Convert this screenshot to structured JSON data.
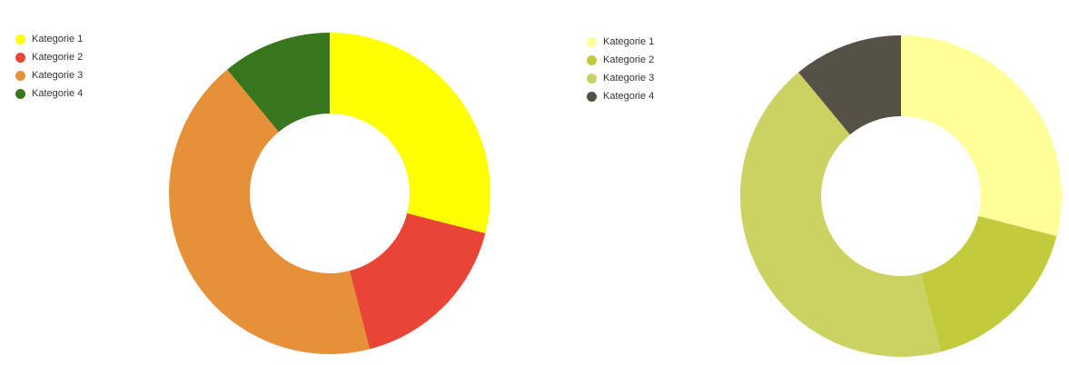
{
  "chart_data": [
    {
      "type": "pie",
      "donut": true,
      "categories": [
        "Kategorie 1",
        "Kategorie 2",
        "Kategorie 3",
        "Kategorie 4"
      ],
      "values": [
        29,
        17,
        43,
        11
      ],
      "colors": [
        "#ffff00",
        "#e84536",
        "#e69138",
        "#38761d"
      ],
      "legend": "top-left",
      "title": ""
    },
    {
      "type": "pie",
      "donut": true,
      "categories": [
        "Kategorie 1",
        "Kategorie 2",
        "Kategorie 3",
        "Kategorie 4"
      ],
      "values": [
        29,
        17,
        43,
        11
      ],
      "colors": [
        "#ffff99",
        "#c2cb3c",
        "#cbd262",
        "#565147"
      ],
      "legend": "top-left",
      "title": ""
    }
  ]
}
